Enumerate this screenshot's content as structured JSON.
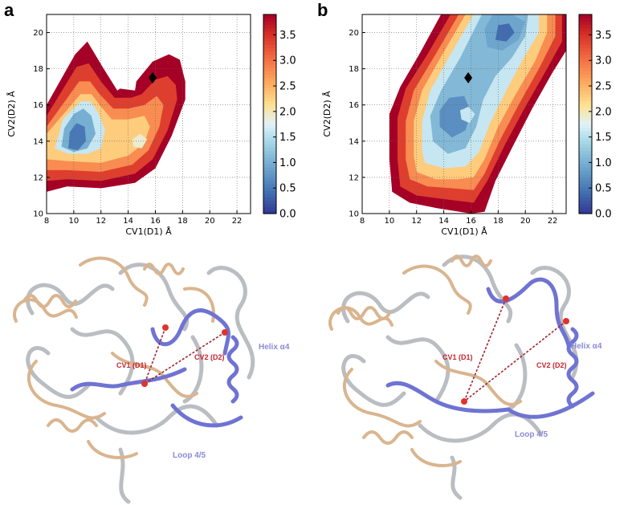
{
  "panels": [
    {
      "letter": "a"
    },
    {
      "letter": "b"
    }
  ],
  "chart_data": [
    {
      "type": "heatmap",
      "panel": "a",
      "title": "",
      "xlabel": "CV1(D1) Å",
      "ylabel": "CV2(D2) Å",
      "xlim": [
        8,
        23
      ],
      "ylim": [
        10,
        21
      ],
      "xticks": [
        8,
        10,
        12,
        14,
        16,
        18,
        20,
        22
      ],
      "yticks": [
        10,
        12,
        14,
        16,
        18,
        20
      ],
      "colorbar": {
        "min": 0.0,
        "max": 3.9,
        "ticks": [
          "0.0",
          "0.5",
          "1.0",
          "1.5",
          "2.0",
          "2.5",
          "3.0",
          "3.5"
        ],
        "colormap": "RdYlBu_r"
      },
      "grid": true,
      "minimum_marker": {
        "x": 15.8,
        "y": 17.5
      },
      "regions": [
        {
          "level": 3.9,
          "poly": [
            [
              8,
              11.2
            ],
            [
              9.5,
              11.5
            ],
            [
              12,
              11.4
            ],
            [
              14.5,
              11.7
            ],
            [
              16,
              12.5
            ],
            [
              17.2,
              14.3
            ],
            [
              18.2,
              16.3
            ],
            [
              18.2,
              17.3
            ],
            [
              17.8,
              18.5
            ],
            [
              17.0,
              18.8
            ],
            [
              15.8,
              18.4
            ],
            [
              14.6,
              17.3
            ],
            [
              14.5,
              16.8
            ],
            [
              13.4,
              16.9
            ],
            [
              13.2,
              16.8
            ],
            [
              12.2,
              18.0
            ],
            [
              11.0,
              19.5
            ],
            [
              10.1,
              18.8
            ],
            [
              8,
              16.0
            ]
          ]
        },
        {
          "level": 3.4,
          "poly": [
            [
              8,
              11.8
            ],
            [
              9.5,
              11.9
            ],
            [
              12,
              11.8
            ],
            [
              14.5,
              12.2
            ],
            [
              15.8,
              13.0
            ],
            [
              16.9,
              14.6
            ],
            [
              17.6,
              16.3
            ],
            [
              17.5,
              17.1
            ],
            [
              16.9,
              17.6
            ],
            [
              16.0,
              17.4
            ],
            [
              15.0,
              16.6
            ],
            [
              14.2,
              16.4
            ],
            [
              13.0,
              16.4
            ],
            [
              12.0,
              17.3
            ],
            [
              11.1,
              18.3
            ],
            [
              10.2,
              18.1
            ],
            [
              8,
              15.4
            ]
          ]
        },
        {
          "level": 2.8,
          "poly": [
            [
              8,
              12.4
            ],
            [
              9.5,
              12.4
            ],
            [
              12,
              12.3
            ],
            [
              14.3,
              12.7
            ],
            [
              15.5,
              13.5
            ],
            [
              16.3,
              14.8
            ],
            [
              16.6,
              16.0
            ],
            [
              16.1,
              16.5
            ],
            [
              15.2,
              16.0
            ],
            [
              14.0,
              15.8
            ],
            [
              12.9,
              15.8
            ],
            [
              11.9,
              16.6
            ],
            [
              11.2,
              17.3
            ],
            [
              10.4,
              17.3
            ],
            [
              8,
              14.8
            ]
          ]
        },
        {
          "level": 2.3,
          "poly": [
            [
              8,
              13.0
            ],
            [
              9.5,
              12.9
            ],
            [
              12,
              12.8
            ],
            [
              14.0,
              13.2
            ],
            [
              15.2,
              13.9
            ],
            [
              15.6,
              14.8
            ],
            [
              15.2,
              15.4
            ],
            [
              14.0,
              15.2
            ],
            [
              12.8,
              15.2
            ],
            [
              11.9,
              16.0
            ],
            [
              11.3,
              16.6
            ],
            [
              10.5,
              16.6
            ],
            [
              8,
              14.4
            ]
          ]
        },
        {
          "level": 1.6,
          "poly": [
            [
              8.6,
              13.6
            ],
            [
              9.6,
              13.3
            ],
            [
              11.0,
              13.3
            ],
            [
              12.0,
              13.6
            ],
            [
              12.3,
              14.6
            ],
            [
              11.8,
              15.6
            ],
            [
              11.2,
              16.2
            ],
            [
              10.5,
              16.2
            ],
            [
              9.2,
              15.2
            ]
          ]
        },
        {
          "level": 1.0,
          "poly": [
            [
              9.1,
              13.7
            ],
            [
              10.0,
              13.4
            ],
            [
              11.0,
              13.6
            ],
            [
              11.6,
              14.4
            ],
            [
              11.3,
              15.4
            ],
            [
              10.7,
              15.8
            ],
            [
              10.0,
              15.5
            ],
            [
              9.3,
              14.7
            ]
          ]
        },
        {
          "level": 0.5,
          "poly": [
            [
              9.6,
              13.6
            ],
            [
              10.3,
              13.5
            ],
            [
              10.9,
              14.0
            ],
            [
              10.8,
              14.8
            ],
            [
              10.2,
              15.0
            ],
            [
              9.7,
              14.5
            ]
          ]
        },
        {
          "level": 1.9,
          "poly": [
            [
              14.4,
              13.7
            ],
            [
              15.0,
              13.6
            ],
            [
              15.4,
              14.1
            ],
            [
              14.9,
              14.4
            ],
            [
              14.3,
              14.1
            ]
          ]
        }
      ]
    },
    {
      "type": "heatmap",
      "panel": "b",
      "title": "",
      "xlabel": "CV1(D1) Å",
      "ylabel": "CV2(D2) Å",
      "xlim": [
        8,
        23
      ],
      "ylim": [
        10,
        21
      ],
      "xticks": [
        8,
        10,
        12,
        14,
        16,
        18,
        20,
        22
      ],
      "yticks": [
        10,
        12,
        14,
        16,
        18,
        20
      ],
      "colorbar": {
        "min": 0.0,
        "max": 3.9,
        "ticks": [
          "0.0",
          "0.5",
          "1.0",
          "1.5",
          "2.0",
          "2.5",
          "3.0",
          "3.5"
        ],
        "colormap": "RdYlBu_r"
      },
      "grid": true,
      "minimum_marker": {
        "x": 15.8,
        "y": 17.5
      },
      "regions": [
        {
          "level": 3.9,
          "poly": [
            [
              10.2,
              11.2
            ],
            [
              11.5,
              10.6
            ],
            [
              13.5,
              10.3
            ],
            [
              16.0,
              10.0
            ],
            [
              17.0,
              10.1
            ],
            [
              17.8,
              11.8
            ],
            [
              19.0,
              13.6
            ],
            [
              20.5,
              15.8
            ],
            [
              22.0,
              17.8
            ],
            [
              23,
              19.0
            ],
            [
              23,
              21
            ],
            [
              13.8,
              21
            ],
            [
              12.2,
              18.8
            ],
            [
              10.8,
              17.0
            ],
            [
              10.0,
              15.5
            ],
            [
              10.0,
              13.0
            ]
          ]
        },
        {
          "level": 3.4,
          "poly": [
            [
              10.8,
              11.5
            ],
            [
              12.0,
              11.0
            ],
            [
              14.0,
              10.8
            ],
            [
              16.2,
              10.6
            ],
            [
              17.2,
              11.8
            ],
            [
              18.5,
              13.8
            ],
            [
              20.0,
              15.9
            ],
            [
              21.6,
              18.0
            ],
            [
              22.7,
              19.5
            ],
            [
              22.7,
              21
            ],
            [
              14.5,
              21
            ],
            [
              12.8,
              18.8
            ],
            [
              11.2,
              16.9
            ],
            [
              10.6,
              15.3
            ],
            [
              10.6,
              13.0
            ]
          ]
        },
        {
          "level": 2.8,
          "poly": [
            [
              11.5,
              11.9
            ],
            [
              12.8,
              11.5
            ],
            [
              14.5,
              11.4
            ],
            [
              16.2,
              11.3
            ],
            [
              17.0,
              12.2
            ],
            [
              18.1,
              14.0
            ],
            [
              19.5,
              16.0
            ],
            [
              21.0,
              18.0
            ],
            [
              22.2,
              19.8
            ],
            [
              22.2,
              21
            ],
            [
              15.1,
              21
            ],
            [
              13.4,
              18.8
            ],
            [
              11.8,
              16.8
            ],
            [
              11.2,
              15.1
            ],
            [
              11.2,
              13.0
            ]
          ]
        },
        {
          "level": 2.3,
          "poly": [
            [
              12.0,
              12.3
            ],
            [
              13.4,
              11.9
            ],
            [
              15.0,
              11.9
            ],
            [
              16.2,
              12.0
            ],
            [
              17.0,
              13.0
            ],
            [
              18.0,
              14.8
            ],
            [
              19.3,
              16.6
            ],
            [
              20.7,
              18.4
            ],
            [
              21.6,
              20.0
            ],
            [
              21.6,
              21
            ],
            [
              15.6,
              21
            ],
            [
              13.9,
              18.8
            ],
            [
              12.4,
              16.8
            ],
            [
              11.8,
              15.1
            ],
            [
              11.8,
              13.2
            ]
          ]
        },
        {
          "level": 1.6,
          "poly": [
            [
              12.6,
              12.8
            ],
            [
              14.0,
              12.5
            ],
            [
              15.6,
              12.6
            ],
            [
              16.6,
              13.4
            ],
            [
              17.4,
              15.0
            ],
            [
              18.6,
              16.8
            ],
            [
              19.8,
              18.5
            ],
            [
              21.0,
              20.0
            ],
            [
              21.0,
              21
            ],
            [
              16.2,
              21
            ],
            [
              14.5,
              18.8
            ],
            [
              13.0,
              16.8
            ],
            [
              12.4,
              15.1
            ],
            [
              12.4,
              13.5
            ]
          ]
        },
        {
          "level": 1.1,
          "poly": [
            [
              13.2,
              14.0
            ],
            [
              14.3,
              13.3
            ],
            [
              15.6,
              13.6
            ],
            [
              16.4,
              14.8
            ],
            [
              16.9,
              16.3
            ],
            [
              17.8,
              17.6
            ],
            [
              19.0,
              18.6
            ],
            [
              20.0,
              19.8
            ],
            [
              20.2,
              21
            ],
            [
              16.8,
              21
            ],
            [
              15.2,
              18.6
            ],
            [
              13.8,
              16.8
            ],
            [
              13.0,
              15.4
            ]
          ]
        },
        {
          "level": 0.7,
          "poly": [
            [
              13.7,
              14.8
            ],
            [
              14.6,
              14.2
            ],
            [
              15.6,
              14.6
            ],
            [
              16.0,
              15.6
            ],
            [
              15.5,
              16.5
            ],
            [
              14.4,
              16.4
            ],
            [
              13.7,
              15.7
            ]
          ]
        },
        {
          "level": 0.9,
          "poly": [
            [
              17.2,
              19.2
            ],
            [
              18.3,
              19.0
            ],
            [
              19.5,
              19.6
            ],
            [
              20.0,
              20.6
            ],
            [
              19.0,
              21
            ],
            [
              17.6,
              21
            ],
            [
              17.0,
              20.2
            ]
          ]
        },
        {
          "level": 0.4,
          "poly": [
            [
              17.8,
              19.6
            ],
            [
              18.6,
              19.5
            ],
            [
              19.2,
              20.0
            ],
            [
              18.8,
              20.5
            ],
            [
              18.0,
              20.4
            ]
          ]
        },
        {
          "level": 1.6,
          "poly": [
            [
              15.3,
              15.2
            ],
            [
              15.9,
              15.0
            ],
            [
              16.3,
              15.5
            ],
            [
              15.8,
              15.9
            ],
            [
              15.2,
              15.7
            ]
          ]
        }
      ]
    }
  ],
  "structures": [
    {
      "panel": "a",
      "labels": {
        "cv1": "CV1 (D1)",
        "cv2": "CV2 (D2)",
        "helix": "Helix α4",
        "loop": "Loop 4/5"
      }
    },
    {
      "panel": "b",
      "labels": {
        "cv1": "CV1 (D1)",
        "cv2": "CV2 (D2)",
        "helix": "Helix α4",
        "loop": "Loop 4/5"
      }
    }
  ],
  "colors": {
    "protein_tan": "#d9b58f",
    "protein_grey": "#9aa0a6",
    "loop_blue": "#6f73d2",
    "distance_red": "#a0262c",
    "bead_red": "#e0332c"
  }
}
